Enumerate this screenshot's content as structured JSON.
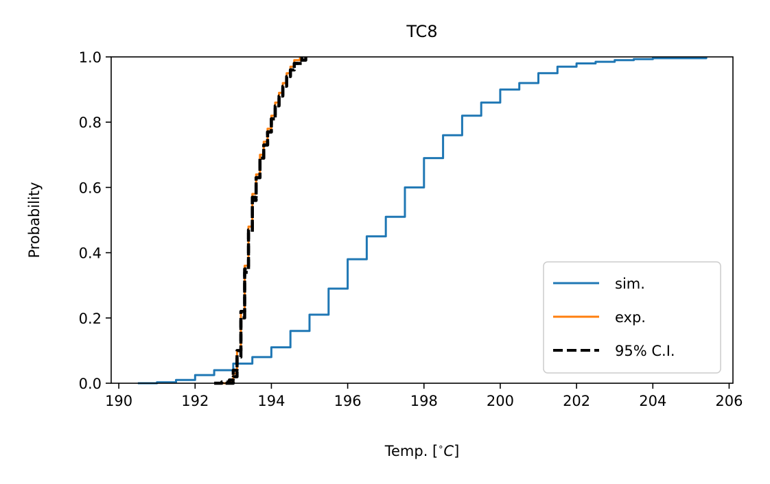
{
  "chart_data": {
    "type": "line",
    "title": "TC8",
    "xlabel": "Temp. [$^{\\circ}C$]",
    "xlabel_display": {
      "prefix": "Temp. [",
      "degree": "∘",
      "unit": "C",
      "suffix": "]"
    },
    "ylabel": "Probability",
    "xlim": [
      189.8,
      206.1
    ],
    "ylim": [
      0.0,
      1.0
    ],
    "xticks": [
      190,
      192,
      194,
      196,
      198,
      200,
      202,
      204,
      206
    ],
    "yticks": [
      0.0,
      0.2,
      0.4,
      0.6,
      0.8,
      1.0
    ],
    "xtick_labels": [
      "190",
      "192",
      "194",
      "196",
      "198",
      "200",
      "202",
      "204",
      "206"
    ],
    "ytick_labels": [
      "0.0",
      "0.2",
      "0.4",
      "0.6",
      "0.8",
      "1.0"
    ],
    "grid": false,
    "legend": {
      "position": "lower-right",
      "entries": [
        "sim.",
        "exp.",
        "95% C.I."
      ]
    },
    "series": [
      {
        "name": "sim.",
        "color": "#1f77b4",
        "style": "solid",
        "x": [
          190.5,
          191.0,
          191.5,
          192.0,
          192.5,
          193.0,
          193.5,
          194.0,
          194.5,
          195.0,
          195.5,
          196.0,
          196.5,
          197.0,
          197.5,
          198.0,
          198.5,
          199.0,
          199.5,
          200.0,
          200.5,
          201.0,
          201.5,
          202.0,
          202.5,
          203.0,
          203.5,
          204.0,
          205.4
        ],
        "y": [
          0.0,
          0.003,
          0.01,
          0.025,
          0.04,
          0.06,
          0.08,
          0.11,
          0.16,
          0.21,
          0.29,
          0.38,
          0.45,
          0.51,
          0.6,
          0.69,
          0.76,
          0.82,
          0.86,
          0.9,
          0.92,
          0.95,
          0.97,
          0.98,
          0.985,
          0.99,
          0.993,
          0.996,
          1.0
        ]
      },
      {
        "name": "exp.",
        "color": "#ff7f0e",
        "style": "solid",
        "x": [
          192.7,
          192.9,
          193.0,
          193.1,
          193.2,
          193.3,
          193.4,
          193.5,
          193.6,
          193.7,
          193.8,
          193.9,
          194.0,
          194.1,
          194.2,
          194.3,
          194.4,
          194.5,
          194.6,
          194.75
        ],
        "y": [
          0.0,
          0.005,
          0.03,
          0.1,
          0.22,
          0.36,
          0.48,
          0.58,
          0.64,
          0.7,
          0.74,
          0.78,
          0.82,
          0.86,
          0.89,
          0.92,
          0.95,
          0.97,
          0.99,
          1.0
        ]
      },
      {
        "name": "95% C.I.",
        "color": "#000000",
        "style": "dashed",
        "x": [
          192.5,
          192.7,
          192.9,
          193.0,
          193.1,
          193.2,
          193.3,
          193.4,
          193.5,
          193.6,
          193.7,
          193.8,
          193.9,
          194.0,
          194.1,
          194.2,
          194.3,
          194.4,
          194.5,
          194.6,
          194.8
        ],
        "y": [
          0.0,
          0.004,
          0.01,
          0.04,
          0.1,
          0.22,
          0.35,
          0.47,
          0.57,
          0.63,
          0.69,
          0.73,
          0.77,
          0.81,
          0.85,
          0.88,
          0.91,
          0.94,
          0.96,
          0.98,
          1.0
        ]
      },
      {
        "name": "95% C.I.",
        "color": "#000000",
        "style": "dashed",
        "x": [
          192.8,
          193.0,
          193.1,
          193.2,
          193.3,
          193.4,
          193.5,
          193.6,
          193.7,
          193.8,
          193.9,
          194.0,
          194.1,
          194.2,
          194.3,
          194.4,
          194.5,
          194.6,
          194.7,
          194.9
        ],
        "y": [
          0.0,
          0.02,
          0.08,
          0.2,
          0.34,
          0.46,
          0.56,
          0.63,
          0.69,
          0.73,
          0.77,
          0.81,
          0.85,
          0.88,
          0.91,
          0.94,
          0.96,
          0.98,
          0.99,
          1.0
        ]
      }
    ]
  }
}
